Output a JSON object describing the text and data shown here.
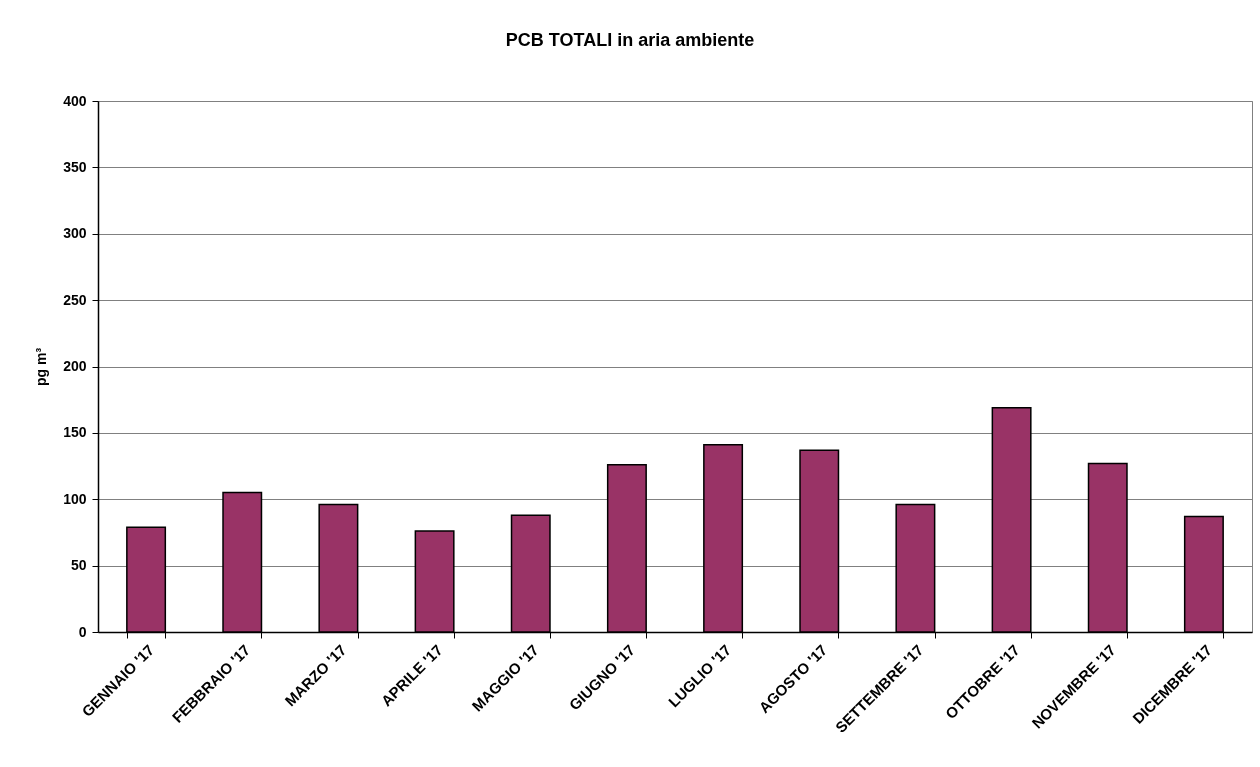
{
  "chart_data": {
    "type": "bar",
    "title": "PCB TOTALI in aria ambiente",
    "ylabel": "pg m³",
    "categories": [
      "GENNAIO '17",
      "FEBBRAIO '17",
      "MARZO '17",
      "APRILE '17",
      "MAGGIO '17",
      "GIUGNO '17",
      "LUGLIO '17",
      "AGOSTO '17",
      "SETTEMBRE '17",
      "OTTOBRE '17",
      "NOVEMBRE '17",
      "DICEMBRE '17"
    ],
    "values": [
      79,
      105,
      96,
      76,
      88,
      126,
      141,
      137,
      96,
      169,
      127,
      87
    ],
    "color": "#993366",
    "ylim": [
      0,
      400
    ],
    "yticks": [
      0,
      50,
      100,
      150,
      200,
      250,
      300,
      350,
      400
    ],
    "grid": "y"
  }
}
